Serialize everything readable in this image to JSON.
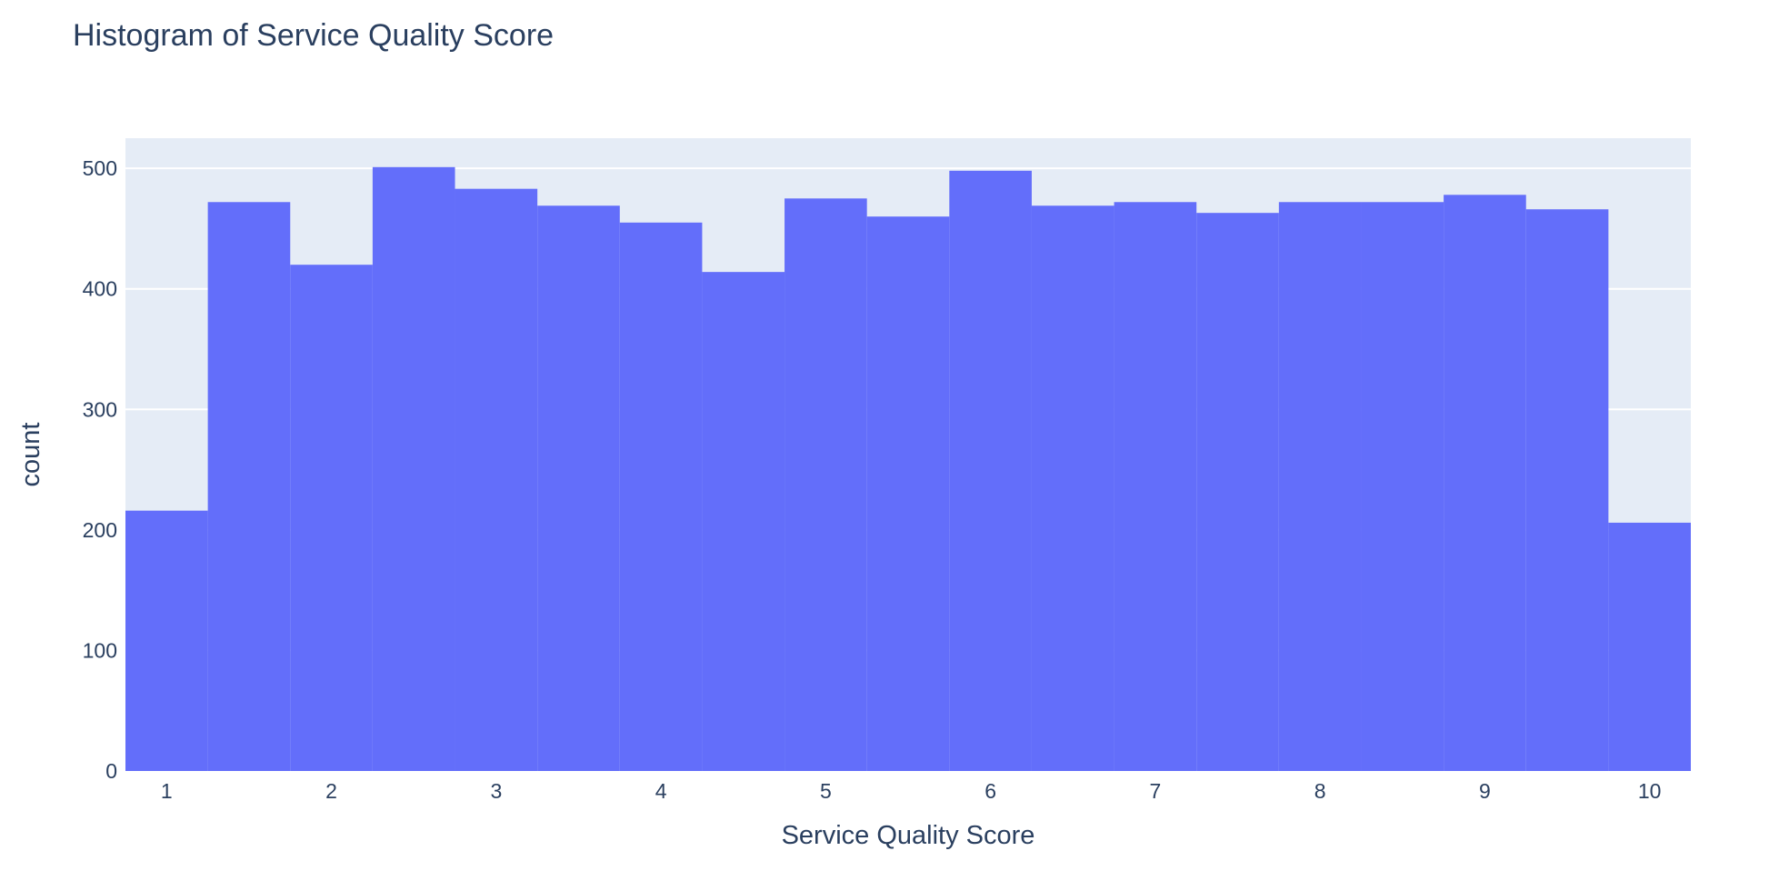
{
  "chart_data": {
    "type": "bar",
    "title": "Histogram of Service Quality Score",
    "xlabel": "Service Quality Score",
    "ylabel": "count",
    "xlim": [
      0.75,
      10.25
    ],
    "ylim": [
      0,
      525
    ],
    "bin_width": 0.5,
    "x": [
      1.0,
      1.5,
      2.0,
      2.5,
      3.0,
      3.5,
      4.0,
      4.5,
      5.0,
      5.5,
      6.0,
      6.5,
      7.0,
      7.5,
      8.0,
      8.5,
      9.0,
      9.5,
      10.0
    ],
    "values": [
      216,
      472,
      420,
      501,
      483,
      469,
      455,
      414,
      475,
      460,
      498,
      469,
      472,
      463,
      472,
      472,
      478,
      466,
      206
    ],
    "x_ticks": [
      1,
      2,
      3,
      4,
      5,
      6,
      7,
      8,
      9,
      10
    ],
    "y_ticks": [
      0,
      100,
      200,
      300,
      400,
      500
    ],
    "grid": true,
    "colors": {
      "bar": "#636efa",
      "plot_bg": "#e5ecf6",
      "grid": "#ffffff",
      "text": "#2a3f5f"
    }
  }
}
